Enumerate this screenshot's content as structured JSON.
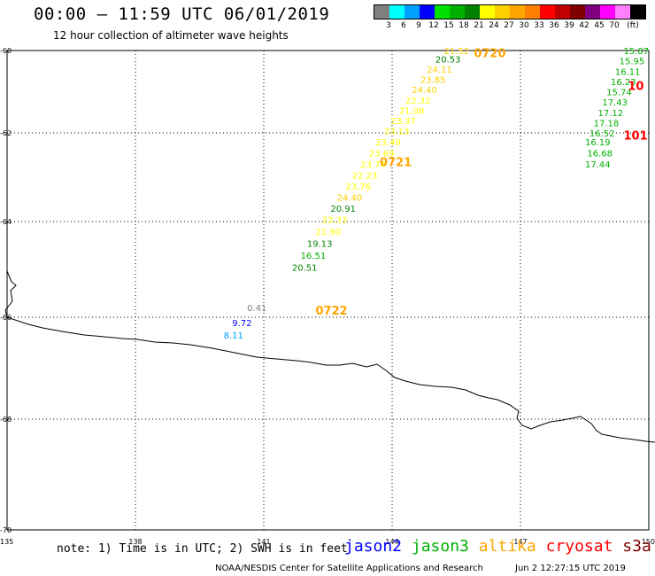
{
  "header": {
    "title": "00:00 – 11:59 UTC 06/01/2019",
    "subtitle": "12 hour collection of altimeter wave heights"
  },
  "legend": {
    "colors": [
      "#7f7f7f",
      "#00ffff",
      "#00a0ff",
      "#0000ff",
      "#00e000",
      "#00b000",
      "#008000",
      "#ffff00",
      "#ffd000",
      "#ffa500",
      "#ff8000",
      "#ff0000",
      "#c00000",
      "#800000",
      "#800080",
      "#ff00ff",
      "#ff80ff",
      "#000000"
    ],
    "labels": [
      "3",
      "6",
      "9",
      "12",
      "15",
      "18",
      "21",
      "24",
      "27",
      "30",
      "33",
      "36",
      "39",
      "42",
      "45",
      "70",
      "(ft)"
    ]
  },
  "map": {
    "lat_ticks": [
      "-60",
      "-62",
      "-64",
      "-66",
      "-68",
      "-70"
    ],
    "lon_ticks": [
      "135",
      "138",
      "141",
      "144",
      "147",
      "150"
    ],
    "lon_range": [
      135,
      150
    ],
    "lat_range": [
      -60,
      -70
    ],
    "track_labels": [
      {
        "text": "0720",
        "lon": 146.2,
        "lat": -60.05,
        "color": "#ffa500"
      },
      {
        "text": "0721",
        "lon": 144.0,
        "lat": -62.65,
        "color": "#ffa500"
      },
      {
        "text": "0722",
        "lon": 142.5,
        "lat": -65.85,
        "color": "#ffa500"
      },
      {
        "text": "101",
        "lon": 149.7,
        "lat": -62.05,
        "color": "#ff0000"
      },
      {
        "text": "10",
        "lon": 149.8,
        "lat": -60.85,
        "color": "#ff0000"
      }
    ],
    "observations": [
      {
        "value": "21.52",
        "lon": 145.5,
        "lat": -60.0,
        "color": "#ffd000"
      },
      {
        "value": "20.53",
        "lon": 145.3,
        "lat": -60.2,
        "color": "#008000"
      },
      {
        "value": "24.11",
        "lon": 145.1,
        "lat": -60.45,
        "color": "#ffd000"
      },
      {
        "value": "23.85",
        "lon": 144.95,
        "lat": -60.7,
        "color": "#ffd000"
      },
      {
        "value": "24.40",
        "lon": 144.75,
        "lat": -60.95,
        "color": "#ffd000"
      },
      {
        "value": "22.32",
        "lon": 144.6,
        "lat": -61.2,
        "color": "#ffff00"
      },
      {
        "value": "21.08",
        "lon": 144.45,
        "lat": -61.45,
        "color": "#ffff00"
      },
      {
        "value": "23.37",
        "lon": 144.25,
        "lat": -61.7,
        "color": "#ffff00"
      },
      {
        "value": "23.13",
        "lon": 144.1,
        "lat": -61.95,
        "color": "#ffff00"
      },
      {
        "value": "23.49",
        "lon": 143.9,
        "lat": -62.2,
        "color": "#ffff00"
      },
      {
        "value": "23.69",
        "lon": 143.75,
        "lat": -62.45,
        "color": "#ffff00"
      },
      {
        "value": "23.74",
        "lon": 143.55,
        "lat": -62.7,
        "color": "#ffff00"
      },
      {
        "value": "22.23",
        "lon": 143.35,
        "lat": -62.95,
        "color": "#ffff00"
      },
      {
        "value": "23.76",
        "lon": 143.2,
        "lat": -63.2,
        "color": "#ffff00"
      },
      {
        "value": "24.40",
        "lon": 143.0,
        "lat": -63.45,
        "color": "#ffd000"
      },
      {
        "value": "20.91",
        "lon": 142.85,
        "lat": -63.7,
        "color": "#008000"
      },
      {
        "value": "22.33",
        "lon": 142.65,
        "lat": -63.95,
        "color": "#ffff00"
      },
      {
        "value": "21.90",
        "lon": 142.5,
        "lat": -64.2,
        "color": "#ffff00"
      },
      {
        "value": "19.13",
        "lon": 142.3,
        "lat": -64.45,
        "color": "#008000"
      },
      {
        "value": "16.51",
        "lon": 142.15,
        "lat": -64.7,
        "color": "#00b000"
      },
      {
        "value": "20.51",
        "lon": 141.95,
        "lat": -64.95,
        "color": "#008000"
      },
      {
        "value": "0.41",
        "lon": 140.9,
        "lat": -65.8,
        "color": "#7f7f7f"
      },
      {
        "value": "9.72",
        "lon": 140.55,
        "lat": -66.1,
        "color": "#0000ff"
      },
      {
        "value": "8.11",
        "lon": 140.35,
        "lat": -66.35,
        "color": "#00a0ff"
      },
      {
        "value": "15.87",
        "lon": 149.7,
        "lat": -60.0,
        "color": "#00b000"
      },
      {
        "value": "15.95",
        "lon": 149.6,
        "lat": -60.25,
        "color": "#00b000"
      },
      {
        "value": "16.11",
        "lon": 149.5,
        "lat": -60.5,
        "color": "#00b000"
      },
      {
        "value": "16.23",
        "lon": 149.4,
        "lat": -60.75,
        "color": "#00b000"
      },
      {
        "value": "15.74",
        "lon": 149.3,
        "lat": -61.0,
        "color": "#00b000"
      },
      {
        "value": "17.43",
        "lon": 149.2,
        "lat": -61.25,
        "color": "#00b000"
      },
      {
        "value": "17.12",
        "lon": 149.1,
        "lat": -61.5,
        "color": "#00b000"
      },
      {
        "value": "17.18",
        "lon": 149.0,
        "lat": -61.75,
        "color": "#00b000"
      },
      {
        "value": "16.52",
        "lon": 148.9,
        "lat": -62.0,
        "color": "#00b000"
      },
      {
        "value": "16.19",
        "lon": 148.8,
        "lat": -62.2,
        "color": "#00b000"
      },
      {
        "value": "16.68",
        "lon": 148.85,
        "lat": -62.45,
        "color": "#00b000"
      },
      {
        "value": "17.44",
        "lon": 148.8,
        "lat": -62.7,
        "color": "#00b000"
      }
    ]
  },
  "note": "note: 1) Time is in UTC; 2) SWH is in feet",
  "satellites": [
    {
      "name": "jason2",
      "color": "#0000ff"
    },
    {
      "name": "jason3",
      "color": "#00b000"
    },
    {
      "name": "altika",
      "color": "#ffa500"
    },
    {
      "name": "cryosat",
      "color": "#ff0000"
    },
    {
      "name": "s3a",
      "color": "#800000"
    }
  ],
  "footer": {
    "credit": "NOAA/NESDIS Center for Satellite Applications and Research",
    "timestamp": "Jun  2 12:27:15 UTC 2019"
  }
}
